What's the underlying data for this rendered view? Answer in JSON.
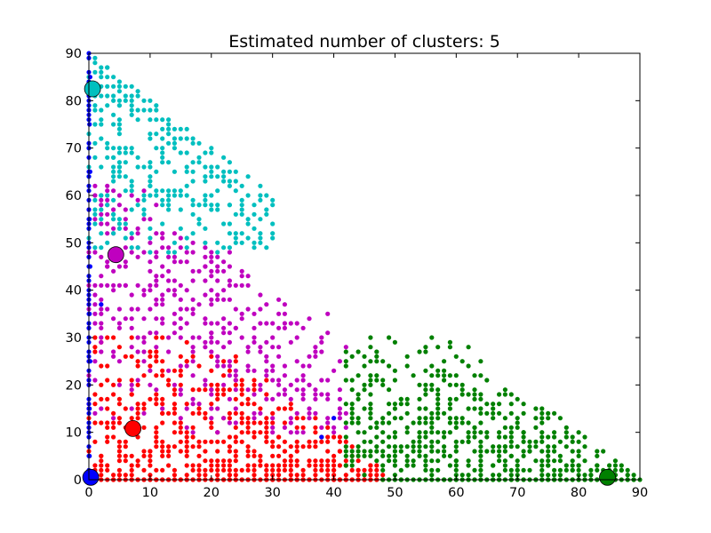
{
  "chart_data": {
    "type": "scatter",
    "title": "Estimated number of clusters: 5",
    "xlabel": "",
    "ylabel": "",
    "xlim": [
      0,
      90
    ],
    "ylim": [
      0,
      90
    ],
    "xticks": [
      0,
      10,
      20,
      30,
      40,
      50,
      60,
      70,
      80,
      90
    ],
    "yticks": [
      0,
      10,
      20,
      30,
      40,
      50,
      60,
      70,
      80,
      90
    ],
    "grid": false,
    "legend": "none",
    "clusters": [
      {
        "color": "#ff0000",
        "center": [
          7.2,
          10.8
        ],
        "region": {
          "x": [
            0,
            48
          ],
          "y": [
            0,
            30
          ],
          "max_sum": 50
        },
        "points": [
          [
            1,
            2
          ],
          [
            2,
            5
          ],
          [
            3,
            8
          ],
          [
            4,
            12
          ],
          [
            5,
            1
          ],
          [
            6,
            15
          ],
          [
            7,
            18
          ],
          [
            8,
            3
          ],
          [
            9,
            22
          ],
          [
            10,
            6
          ],
          [
            11,
            9
          ],
          [
            12,
            14
          ],
          [
            13,
            20
          ],
          [
            14,
            2
          ],
          [
            15,
            11
          ],
          [
            16,
            25
          ],
          [
            17,
            7
          ],
          [
            18,
            16
          ],
          [
            19,
            4
          ],
          [
            20,
            19
          ],
          [
            21,
            10
          ],
          [
            22,
            13
          ],
          [
            23,
            1
          ],
          [
            24,
            21
          ],
          [
            25,
            8
          ],
          [
            26,
            17
          ],
          [
            27,
            5
          ],
          [
            28,
            12
          ],
          [
            29,
            2
          ],
          [
            30,
            14
          ],
          [
            31,
            9
          ],
          [
            32,
            6
          ],
          [
            33,
            16
          ],
          [
            34,
            3
          ],
          [
            35,
            11
          ],
          [
            36,
            7
          ],
          [
            37,
            13
          ],
          [
            38,
            4
          ],
          [
            39,
            9
          ],
          [
            40,
            2
          ],
          [
            41,
            6
          ],
          [
            42,
            3
          ],
          [
            43,
            5
          ],
          [
            44,
            2
          ],
          [
            45,
            1
          ],
          [
            46,
            3
          ],
          [
            47,
            1
          ],
          [
            1,
            27
          ],
          [
            2,
            29
          ],
          [
            3,
            24
          ],
          [
            5,
            28
          ],
          [
            7,
            26
          ],
          [
            9,
            30
          ]
        ]
      },
      {
        "color": "#008000",
        "center": [
          84.7,
          0.5
        ],
        "region": {
          "x": [
            42,
            90
          ],
          "y": [
            0,
            30
          ],
          "max_sum": 90
        },
        "points": [
          [
            48,
            2
          ],
          [
            50,
            5
          ],
          [
            52,
            10
          ],
          [
            54,
            15
          ],
          [
            56,
            20
          ],
          [
            58,
            25
          ],
          [
            59,
            29
          ],
          [
            60,
            4
          ],
          [
            62,
            8
          ],
          [
            64,
            12
          ],
          [
            66,
            3
          ],
          [
            68,
            7
          ],
          [
            70,
            2
          ],
          [
            72,
            6
          ],
          [
            74,
            1
          ],
          [
            76,
            4
          ],
          [
            78,
            2
          ],
          [
            80,
            3
          ],
          [
            82,
            1
          ],
          [
            84,
            2
          ],
          [
            86,
            1
          ],
          [
            88,
            1
          ],
          [
            45,
            20
          ],
          [
            47,
            27
          ],
          [
            49,
            30
          ],
          [
            51,
            17
          ],
          [
            53,
            22
          ],
          [
            55,
            9
          ],
          [
            57,
            13
          ],
          [
            61,
            18
          ],
          [
            63,
            11
          ],
          [
            65,
            14
          ],
          [
            67,
            9
          ],
          [
            69,
            5
          ],
          [
            71,
            10
          ],
          [
            73,
            8
          ],
          [
            75,
            3
          ],
          [
            77,
            5
          ],
          [
            79,
            2
          ],
          [
            81,
            4
          ],
          [
            83,
            3
          ],
          [
            85,
            1
          ],
          [
            87,
            2
          ],
          [
            89,
            0
          ],
          [
            44,
            12
          ],
          [
            46,
            8
          ],
          [
            48,
            6
          ],
          [
            52,
            3
          ],
          [
            56,
            1
          ],
          [
            60,
            1
          ]
        ]
      },
      {
        "color": "#bf00bf",
        "center": [
          4.4,
          47.5
        ],
        "region": {
          "x": [
            0,
            42
          ],
          "y": [
            10,
            62
          ],
          "max_sum": 70
        },
        "points": [
          [
            1,
            33
          ],
          [
            2,
            38
          ],
          [
            3,
            45
          ],
          [
            4,
            52
          ],
          [
            5,
            58
          ],
          [
            6,
            41
          ],
          [
            7,
            36
          ],
          [
            8,
            49
          ],
          [
            9,
            55
          ],
          [
            10,
            31
          ],
          [
            11,
            43
          ],
          [
            12,
            39
          ],
          [
            13,
            47
          ],
          [
            14,
            35
          ],
          [
            15,
            51
          ],
          [
            16,
            33
          ],
          [
            17,
            42
          ],
          [
            18,
            37
          ],
          [
            19,
            45
          ],
          [
            20,
            31
          ],
          [
            21,
            39
          ],
          [
            22,
            34
          ],
          [
            23,
            48
          ],
          [
            24,
            32
          ],
          [
            25,
            41
          ],
          [
            26,
            36
          ],
          [
            27,
            30
          ],
          [
            28,
            39
          ],
          [
            29,
            33
          ],
          [
            30,
            28
          ],
          [
            31,
            35
          ],
          [
            32,
            22
          ],
          [
            33,
            29
          ],
          [
            34,
            25
          ],
          [
            35,
            32
          ],
          [
            36,
            20
          ],
          [
            37,
            27
          ],
          [
            38,
            18
          ],
          [
            39,
            35
          ],
          [
            40,
            23
          ],
          [
            41,
            19
          ],
          [
            42,
            14
          ]
        ]
      },
      {
        "color": "#00bfbf",
        "center": [
          0.6,
          82.5
        ],
        "region": {
          "x": [
            0,
            30
          ],
          "y": [
            48,
            90
          ],
          "max_sum": 90
        },
        "points": [
          [
            1,
            89
          ],
          [
            2,
            86
          ],
          [
            3,
            87
          ],
          [
            4,
            80
          ],
          [
            5,
            79
          ],
          [
            1,
            75
          ],
          [
            2,
            72
          ],
          [
            3,
            70
          ],
          [
            4,
            68
          ],
          [
            5,
            66
          ],
          [
            6,
            64
          ],
          [
            7,
            70
          ],
          [
            8,
            68
          ],
          [
            9,
            66
          ],
          [
            10,
            62
          ],
          [
            2,
            60
          ],
          [
            3,
            58
          ],
          [
            4,
            56
          ],
          [
            17,
            58
          ],
          [
            18,
            58
          ],
          [
            20,
            58
          ],
          [
            23,
            58
          ],
          [
            25,
            56
          ],
          [
            28,
            51
          ]
        ]
      },
      {
        "color": "#0000ff",
        "center": [
          0.3,
          0.5
        ],
        "region": {
          "x": [
            0,
            1
          ],
          "y": [
            0,
            90
          ],
          "max_sum": 90
        },
        "points": [
          [
            0.1,
            5
          ],
          [
            0.1,
            15
          ],
          [
            0.2,
            25
          ],
          [
            0.1,
            35
          ],
          [
            0.2,
            45
          ],
          [
            0.1,
            55
          ],
          [
            0.2,
            65
          ],
          [
            0.1,
            75
          ],
          [
            0.2,
            85
          ],
          [
            2,
            37
          ],
          [
            38,
            9
          ],
          [
            40,
            13
          ]
        ]
      }
    ]
  }
}
